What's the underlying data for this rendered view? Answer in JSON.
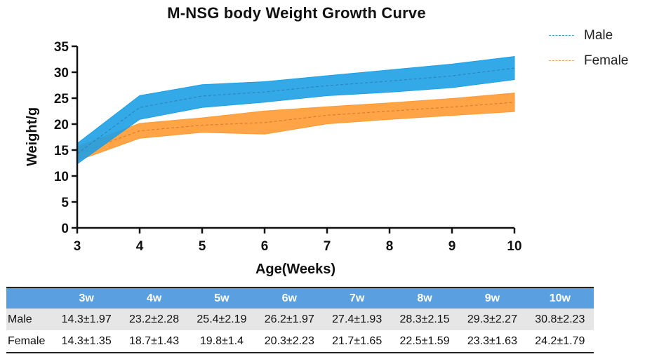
{
  "chart_data": {
    "type": "area",
    "title": "M-NSG body Weight Growth Curve",
    "xlabel": "Age(Weeks)",
    "ylabel": "Weight/g",
    "x": [
      3,
      4,
      5,
      6,
      7,
      8,
      9,
      10
    ],
    "xlim": [
      3,
      10
    ],
    "ylim": [
      0,
      35
    ],
    "yticks": [
      0,
      5,
      10,
      15,
      20,
      25,
      30,
      35
    ],
    "grid": false,
    "legend": "top-right",
    "series": [
      {
        "name": "Male",
        "color": "#1ea0e6",
        "line_color": "#2d7fb8",
        "mean": [
          14.3,
          23.2,
          25.4,
          26.2,
          27.4,
          28.3,
          29.3,
          30.8
        ],
        "sd": [
          1.97,
          2.28,
          2.19,
          1.97,
          1.93,
          2.15,
          2.27,
          2.23
        ]
      },
      {
        "name": "Female",
        "color": "#ff9a33",
        "line_color": "#d9782a",
        "mean": [
          14.3,
          18.7,
          19.8,
          20.3,
          21.7,
          22.5,
          23.3,
          24.2
        ],
        "sd": [
          1.35,
          1.43,
          1.4,
          2.23,
          1.65,
          1.59,
          1.63,
          1.79
        ]
      }
    ]
  },
  "table": {
    "headers": [
      "",
      "3w",
      "4w",
      "5w",
      "6w",
      "7w",
      "8w",
      "9w",
      "10w"
    ],
    "rows": [
      {
        "label": "Male",
        "cells": [
          "14.3±1.97",
          "23.2±2.28",
          "25.4±2.19",
          "26.2±1.97",
          "27.4±1.93",
          "28.3±2.15",
          "29.3±2.27",
          "30.8±2.23"
        ]
      },
      {
        "label": "Female",
        "cells": [
          "14.3±1.35",
          "18.7±1.43",
          "19.8±1.4",
          "20.3±2.23",
          "21.7±1.65",
          "22.5±1.59",
          "23.3±1.63",
          "24.2±1.79"
        ]
      }
    ]
  }
}
